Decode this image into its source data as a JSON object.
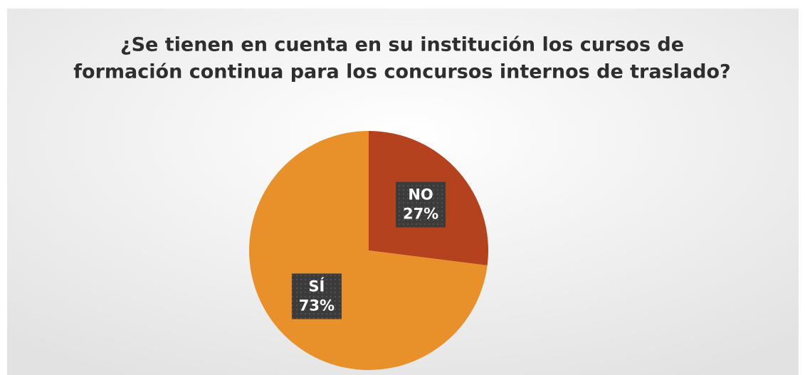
{
  "chart_data": {
    "type": "pie",
    "title": [
      "¿Se tienen en cuenta en su institución los cursos de",
      "formación continua para los concursos internos de traslado?"
    ],
    "categories": [
      "NO",
      "SÍ"
    ],
    "values": [
      27,
      73
    ],
    "value_labels": [
      "27%",
      "73%"
    ],
    "colors": [
      "#b5421f",
      "#e8912b"
    ]
  }
}
